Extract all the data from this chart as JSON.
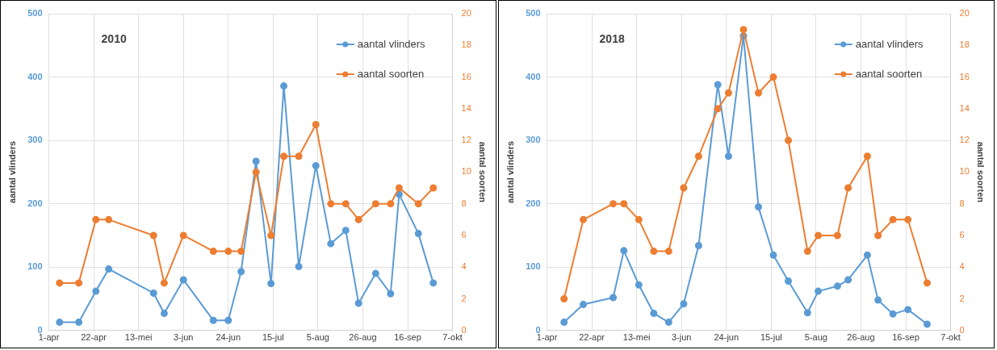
{
  "chart_data": [
    {
      "type": "line",
      "title": "2010",
      "ylabel": "aantal vlinders",
      "y2label": "aantal soorten",
      "grid": true,
      "legend": "top right",
      "marker": "circle",
      "line_style": "solid",
      "xlim": [
        "--04-01",
        "--10-07"
      ],
      "xticks": [
        {
          "value": "--04-01",
          "label": "1-apr"
        },
        {
          "value": "--04-22",
          "label": "22-apr"
        },
        {
          "value": "--05-13",
          "label": "13-mei"
        },
        {
          "value": "--06-03",
          "label": "3-jun"
        },
        {
          "value": "--06-24",
          "label": "24-jun"
        },
        {
          "value": "--07-15",
          "label": "15-jul"
        },
        {
          "value": "--08-05",
          "label": "5-aug"
        },
        {
          "value": "--08-26",
          "label": "26-aug"
        },
        {
          "value": "--09-16",
          "label": "16-sep"
        },
        {
          "value": "--10-07",
          "label": "7-okt"
        }
      ],
      "ylim": [
        0,
        500
      ],
      "yticks": [
        0,
        100,
        200,
        300,
        400,
        500
      ],
      "y2lim": [
        0,
        20
      ],
      "y2ticks": [
        0,
        2,
        4,
        6,
        8,
        10,
        12,
        14,
        16,
        18,
        20
      ],
      "x": [
        "--04-06",
        "--04-15",
        "--04-23",
        "--04-29",
        "--05-20",
        "--05-25",
        "--06-03",
        "--06-17",
        "--06-24",
        "--06-30",
        "--07-07",
        "--07-14",
        "--07-20",
        "--07-27",
        "--08-04",
        "--08-11",
        "--08-18",
        "--08-24",
        "--09-01",
        "--09-08",
        "--09-12",
        "--09-21",
        "--09-28"
      ],
      "series": [
        {
          "name": "aantal vlinders",
          "color": "#5b9bd5",
          "values": [
            13,
            13,
            62,
            97,
            59,
            27,
            80,
            16,
            16,
            93,
            267,
            74,
            386,
            101,
            260,
            137,
            158,
            43,
            90,
            58,
            215,
            153,
            75
          ]
        },
        {
          "name": "aantal soorten",
          "color": "#ed7d31",
          "axis": "y2",
          "values": [
            3,
            3,
            7,
            7,
            6,
            3,
            6,
            5,
            5,
            5,
            10,
            6,
            11,
            11,
            13,
            8,
            8,
            7,
            8,
            8,
            9,
            8,
            9
          ]
        }
      ]
    },
    {
      "type": "line",
      "title": "2018",
      "ylabel": "aantal vlinders",
      "y2label": "aantal soorten",
      "grid": true,
      "legend": "top right",
      "marker": "circle",
      "line_style": "solid",
      "xlim": [
        "--04-01",
        "--10-07"
      ],
      "xticks": [
        {
          "value": "--04-01",
          "label": "1-apr"
        },
        {
          "value": "--04-22",
          "label": "22-apr"
        },
        {
          "value": "--05-13",
          "label": "13-mei"
        },
        {
          "value": "--06-03",
          "label": "3-jun"
        },
        {
          "value": "--06-24",
          "label": "24-jun"
        },
        {
          "value": "--07-15",
          "label": "15-jul"
        },
        {
          "value": "--08-05",
          "label": "5-aug"
        },
        {
          "value": "--08-26",
          "label": "26-aug"
        },
        {
          "value": "--09-16",
          "label": "16-sep"
        },
        {
          "value": "--10-07",
          "label": "7-okt"
        }
      ],
      "ylim": [
        0,
        500
      ],
      "yticks": [
        0,
        100,
        200,
        300,
        400,
        500
      ],
      "y2lim": [
        0,
        20
      ],
      "y2ticks": [
        0,
        2,
        4,
        6,
        8,
        10,
        12,
        14,
        16,
        18,
        20
      ],
      "x": [
        "--04-09",
        "--04-18",
        "--05-02",
        "--05-07",
        "--05-14",
        "--05-21",
        "--05-28",
        "--06-04",
        "--06-11",
        "--06-20",
        "--06-25",
        "--07-02",
        "--07-09",
        "--07-16",
        "--07-23",
        "--08-01",
        "--08-06",
        "--08-15",
        "--08-20",
        "--08-29",
        "--09-03",
        "--09-10",
        "--09-17",
        "--09-26"
      ],
      "series": [
        {
          "name": "aantal vlinders",
          "color": "#5b9bd5",
          "values": [
            13,
            41,
            52,
            126,
            72,
            27,
            13,
            42,
            134,
            388,
            275,
            465,
            195,
            119,
            78,
            28,
            62,
            70,
            80,
            119,
            48,
            26,
            33,
            10
          ]
        },
        {
          "name": "aantal soorten",
          "color": "#ed7d31",
          "axis": "y2",
          "values": [
            2,
            7,
            8,
            8,
            7,
            5,
            5,
            9,
            11,
            14,
            15,
            19,
            15,
            16,
            12,
            5,
            6,
            6,
            9,
            11,
            6,
            7,
            7,
            3
          ]
        }
      ]
    }
  ]
}
